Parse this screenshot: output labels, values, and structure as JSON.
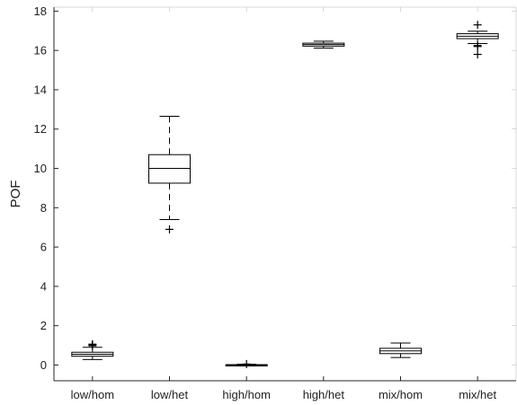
{
  "chart_data": {
    "type": "box",
    "ylabel": "POF",
    "xlabel": "",
    "title": "",
    "ylim": [
      -0.8,
      18.2
    ],
    "yticks": [
      0,
      2,
      4,
      6,
      8,
      10,
      12,
      14,
      16,
      18
    ],
    "grid": false,
    "categories": [
      "low/hom",
      "low/het",
      "high/hom",
      "high/het",
      "mix/hom",
      "mix/het"
    ],
    "boxes": [
      {
        "category": "low/hom",
        "whisker_low": 0.28,
        "q1": 0.45,
        "median": 0.55,
        "q3": 0.65,
        "whisker_high": 0.9,
        "outliers": [
          0.98,
          1.02,
          1.06
        ]
      },
      {
        "category": "low/het",
        "whisker_low": 7.4,
        "q1": 9.25,
        "median": 10.0,
        "q3": 10.7,
        "whisker_high": 12.65,
        "outliers": [
          6.9
        ]
      },
      {
        "category": "high/hom",
        "whisker_low": -0.04,
        "q1": -0.02,
        "median": 0.0,
        "q3": 0.02,
        "whisker_high": 0.04,
        "outliers": [
          0.05
        ]
      },
      {
        "category": "high/het",
        "whisker_low": 16.12,
        "q1": 16.22,
        "median": 16.3,
        "q3": 16.37,
        "whisker_high": 16.47,
        "outliers": []
      },
      {
        "category": "mix/hom",
        "whisker_low": 0.38,
        "q1": 0.58,
        "median": 0.72,
        "q3": 0.85,
        "whisker_high": 1.12,
        "outliers": []
      },
      {
        "category": "mix/het",
        "whisker_low": 16.35,
        "q1": 16.6,
        "median": 16.72,
        "q3": 16.85,
        "whisker_high": 16.98,
        "outliers": [
          17.3,
          16.25,
          16.2,
          15.8
        ]
      }
    ]
  },
  "colors": {
    "box_stroke": "#000000",
    "axis": "#262626",
    "background": "#ffffff"
  }
}
